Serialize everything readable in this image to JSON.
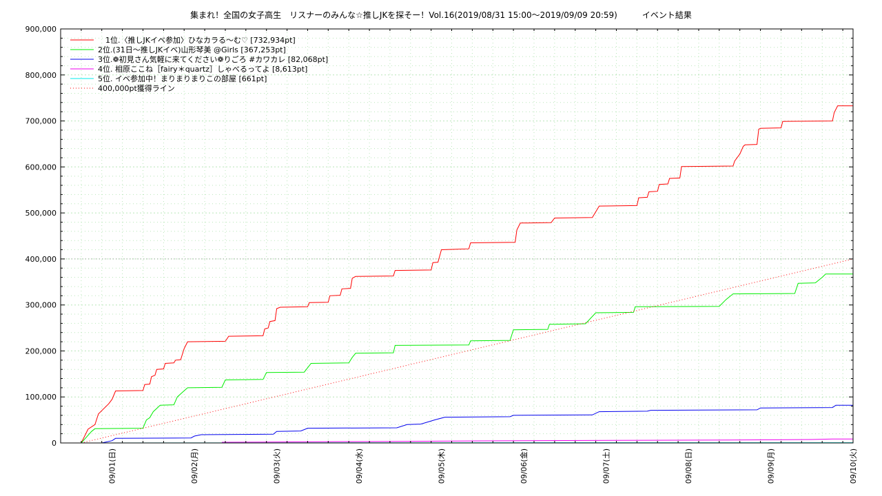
{
  "chart_data": {
    "type": "line",
    "title": "集まれ！全国の女子高生　リスナーのみんな☆推しJKを探そー！Vol.16(2019/08/31 15:00～2019/09/09 20:59)　　　イベント結果",
    "xlabel": "",
    "ylabel": "",
    "x_tick_labels": [
      "09/01(日)",
      "09/02(月)",
      "09/03(火)",
      "09/04(水)",
      "09/05(木)",
      "09/06(金)",
      "09/07(土)",
      "09/08(日)",
      "09/09(月)",
      "09/10(火)"
    ],
    "x_tick_dates": [
      "2019-09-01",
      "2019-09-02",
      "2019-09-03",
      "2019-09-04",
      "2019-09-05",
      "2019-09-06",
      "2019-09-07",
      "2019-09-08",
      "2019-09-09",
      "2019-09-10"
    ],
    "x_range": [
      "2019-08-31 09:00",
      "2019-09-10 00:00"
    ],
    "ylim": [
      0,
      900000
    ],
    "y_ticks": [
      0,
      100000,
      200000,
      300000,
      400000,
      500000,
      600000,
      700000,
      800000,
      900000
    ],
    "y_tick_labels": [
      "0",
      "100,000",
      "200,000",
      "300,000",
      "400,000",
      "500,000",
      "600,000",
      "700,000",
      "800,000",
      "900,000"
    ],
    "grid": true,
    "legend_position": "top-left",
    "reference_line": {
      "value": 400000,
      "style": "horizontal dotted",
      "color": "#999999"
    },
    "series": [
      {
        "name": "　1位.〈推しJKイベ参加〉ひなカラる～む♡ [732,934pt]",
        "color": "#ff0000",
        "style": "solid",
        "points": [
          [
            "2019-08-31 15:00",
            0
          ],
          [
            "2019-08-31 17:00",
            30000
          ],
          [
            "2019-08-31 19:00",
            40000
          ],
          [
            "2019-08-31 20:00",
            63000
          ],
          [
            "2019-08-31 23:00",
            85000
          ],
          [
            "2019-09-01 00:00",
            95000
          ],
          [
            "2019-09-01 01:00",
            113000
          ],
          [
            "2019-09-01 09:00",
            114000
          ],
          [
            "2019-09-01 09:30",
            127000
          ],
          [
            "2019-09-01 11:00",
            128000
          ],
          [
            "2019-09-01 11:30",
            144000
          ],
          [
            "2019-09-01 12:30",
            147000
          ],
          [
            "2019-09-01 13:00",
            160000
          ],
          [
            "2019-09-01 15:00",
            161000
          ],
          [
            "2019-09-01 15:30",
            173000
          ],
          [
            "2019-09-01 18:00",
            174000
          ],
          [
            "2019-09-01 18:30",
            180000
          ],
          [
            "2019-09-01 20:00",
            181000
          ],
          [
            "2019-09-01 21:00",
            205000
          ],
          [
            "2019-09-01 22:00",
            220000
          ],
          [
            "2019-09-02 09:00",
            221000
          ],
          [
            "2019-09-02 10:00",
            232000
          ],
          [
            "2019-09-02 20:00",
            233000
          ],
          [
            "2019-09-02 20:30",
            248000
          ],
          [
            "2019-09-02 21:30",
            250000
          ],
          [
            "2019-09-02 22:00",
            264000
          ],
          [
            "2019-09-02 23:30",
            266000
          ],
          [
            "2019-09-03 00:00",
            292000
          ],
          [
            "2019-09-03 01:00",
            295000
          ],
          [
            "2019-09-03 09:00",
            296000
          ],
          [
            "2019-09-03 09:30",
            305000
          ],
          [
            "2019-09-03 15:00",
            306000
          ],
          [
            "2019-09-03 15:30",
            320000
          ],
          [
            "2019-09-03 18:30",
            321000
          ],
          [
            "2019-09-03 19:00",
            335000
          ],
          [
            "2019-09-03 21:30",
            336000
          ],
          [
            "2019-09-03 22:00",
            358000
          ],
          [
            "2019-09-03 23:00",
            362000
          ],
          [
            "2019-09-04 10:00",
            363000
          ],
          [
            "2019-09-04 10:30",
            375000
          ],
          [
            "2019-09-04 21:00",
            376000
          ],
          [
            "2019-09-04 21:30",
            392000
          ],
          [
            "2019-09-04 23:00",
            393000
          ],
          [
            "2019-09-05 00:00",
            420000
          ],
          [
            "2019-09-05 04:00",
            421000
          ],
          [
            "2019-09-05 08:00",
            422000
          ],
          [
            "2019-09-05 08:30",
            435000
          ],
          [
            "2019-09-05 21:30",
            436000
          ],
          [
            "2019-09-05 22:00",
            463000
          ],
          [
            "2019-09-05 23:00",
            478000
          ],
          [
            "2019-09-06 08:00",
            479000
          ],
          [
            "2019-09-06 09:00",
            489000
          ],
          [
            "2019-09-06 20:00",
            490000
          ],
          [
            "2019-09-06 22:00",
            515000
          ],
          [
            "2019-09-07 09:00",
            516000
          ],
          [
            "2019-09-07 09:30",
            533000
          ],
          [
            "2019-09-07 12:00",
            534000
          ],
          [
            "2019-09-07 12:30",
            546000
          ],
          [
            "2019-09-07 15:00",
            547000
          ],
          [
            "2019-09-07 15:30",
            562000
          ],
          [
            "2019-09-07 18:00",
            563000
          ],
          [
            "2019-09-07 18:30",
            575000
          ],
          [
            "2019-09-07 21:30",
            576000
          ],
          [
            "2019-09-07 22:00",
            601000
          ],
          [
            "2019-09-08 13:00",
            602000
          ],
          [
            "2019-09-08 13:30",
            613000
          ],
          [
            "2019-09-08 15:00",
            628000
          ],
          [
            "2019-09-08 16:00",
            645000
          ],
          [
            "2019-09-08 16:30",
            648000
          ],
          [
            "2019-09-08 20:00",
            649000
          ],
          [
            "2019-09-08 20:30",
            682000
          ],
          [
            "2019-09-08 21:00",
            684000
          ],
          [
            "2019-09-09 03:00",
            685000
          ],
          [
            "2019-09-09 03:30",
            699000
          ],
          [
            "2019-09-09 18:00",
            700000
          ],
          [
            "2019-09-09 18:30",
            718000
          ],
          [
            "2019-09-09 19:30",
            732934
          ],
          [
            "2019-09-10 00:00",
            732934
          ]
        ]
      },
      {
        "name": "2位.(31日～推しJKイベ)山形琴美 @Girls [367,253pt]",
        "color": "#00ee00",
        "style": "solid",
        "points": [
          [
            "2019-08-31 15:00",
            0
          ],
          [
            "2019-08-31 18:00",
            25000
          ],
          [
            "2019-08-31 19:00",
            31000
          ],
          [
            "2019-09-01 09:00",
            32000
          ],
          [
            "2019-09-01 10:00",
            50000
          ],
          [
            "2019-09-01 11:00",
            55000
          ],
          [
            "2019-09-01 12:00",
            68000
          ],
          [
            "2019-09-01 14:00",
            82000
          ],
          [
            "2019-09-01 18:00",
            83000
          ],
          [
            "2019-09-01 19:00",
            100000
          ],
          [
            "2019-09-01 20:30",
            110000
          ],
          [
            "2019-09-01 22:00",
            120000
          ],
          [
            "2019-09-02 08:00",
            121000
          ],
          [
            "2019-09-02 09:00",
            137000
          ],
          [
            "2019-09-02 20:00",
            138000
          ],
          [
            "2019-09-02 21:00",
            153000
          ],
          [
            "2019-09-03 08:00",
            154000
          ],
          [
            "2019-09-03 10:00",
            173000
          ],
          [
            "2019-09-03 21:00",
            174000
          ],
          [
            "2019-09-03 22:00",
            186000
          ],
          [
            "2019-09-03 23:00",
            195000
          ],
          [
            "2019-09-04 10:00",
            196000
          ],
          [
            "2019-09-04 10:30",
            212000
          ],
          [
            "2019-09-05 08:00",
            213000
          ],
          [
            "2019-09-05 08:30",
            222000
          ],
          [
            "2019-09-05 20:00",
            223000
          ],
          [
            "2019-09-05 21:00",
            246000
          ],
          [
            "2019-09-06 07:00",
            247000
          ],
          [
            "2019-09-06 07:30",
            258000
          ],
          [
            "2019-09-06 18:00",
            259000
          ],
          [
            "2019-09-06 20:00",
            275000
          ],
          [
            "2019-09-06 21:00",
            283000
          ],
          [
            "2019-09-07 08:00",
            284000
          ],
          [
            "2019-09-07 08:30",
            296000
          ],
          [
            "2019-09-08 09:00",
            297000
          ],
          [
            "2019-09-08 11:00",
            312000
          ],
          [
            "2019-09-08 13:00",
            324000
          ],
          [
            "2019-09-09 07:00",
            325000
          ],
          [
            "2019-09-09 08:00",
            347000
          ],
          [
            "2019-09-09 13:00",
            348000
          ],
          [
            "2019-09-09 15:00",
            360000
          ],
          [
            "2019-09-09 16:00",
            367253
          ],
          [
            "2019-09-10 00:00",
            367253
          ]
        ]
      },
      {
        "name": "3位.❁初見さん気軽に来てください❁りごろ #カワカレ [82,068pt]",
        "color": "#0000ee",
        "style": "solid",
        "points": [
          [
            "2019-08-31 21:00",
            0
          ],
          [
            "2019-09-01 00:00",
            5000
          ],
          [
            "2019-09-01 01:00",
            10000
          ],
          [
            "2019-09-01 23:00",
            11000
          ],
          [
            "2019-09-02 00:00",
            15000
          ],
          [
            "2019-09-02 02:00",
            18000
          ],
          [
            "2019-09-02 23:00",
            19000
          ],
          [
            "2019-09-03 00:00",
            25000
          ],
          [
            "2019-09-03 07:00",
            26000
          ],
          [
            "2019-09-03 09:00",
            32000
          ],
          [
            "2019-09-04 11:00",
            33000
          ],
          [
            "2019-09-04 14:00",
            40000
          ],
          [
            "2019-09-04 18:00",
            41000
          ],
          [
            "2019-09-04 22:00",
            50000
          ],
          [
            "2019-09-05 01:00",
            56000
          ],
          [
            "2019-09-05 20:00",
            57000
          ],
          [
            "2019-09-05 21:00",
            60000
          ],
          [
            "2019-09-06 20:00",
            61000
          ],
          [
            "2019-09-06 22:00",
            68000
          ],
          [
            "2019-09-07 12:00",
            69000
          ],
          [
            "2019-09-07 13:00",
            71000
          ],
          [
            "2019-09-08 20:00",
            72000
          ],
          [
            "2019-09-08 21:00",
            76000
          ],
          [
            "2019-09-09 18:00",
            77000
          ],
          [
            "2019-09-09 19:00",
            82068
          ],
          [
            "2019-09-10 00:00",
            82068
          ]
        ]
      },
      {
        "name": "4位. 相原ここね［fairy＊quartz］しゃべるってよ [8,613pt]",
        "color": "#ee00ee",
        "style": "solid",
        "points": [
          [
            "2019-09-02 08:00",
            1500
          ],
          [
            "2019-09-03 12:00",
            2500
          ],
          [
            "2019-09-04 12:00",
            3500
          ],
          [
            "2019-09-05 12:00",
            4500
          ],
          [
            "2019-09-06 12:00",
            5200
          ],
          [
            "2019-09-07 12:00",
            5800
          ],
          [
            "2019-09-08 12:00",
            6500
          ],
          [
            "2019-09-09 12:00",
            7500
          ],
          [
            "2019-09-09 18:00",
            8613
          ],
          [
            "2019-09-10 00:00",
            8613
          ]
        ]
      },
      {
        "name": "5位. イベ参加中！まりまりまりこの部屋 [661pt]",
        "color": "#00eeee",
        "style": "solid",
        "points": [
          [
            "2019-08-31 15:00",
            0
          ],
          [
            "2019-09-02 00:00",
            200
          ],
          [
            "2019-09-05 00:00",
            400
          ],
          [
            "2019-09-08 00:00",
            600
          ],
          [
            "2019-09-10 00:00",
            661
          ]
        ]
      },
      {
        "name": "400,000pt獲得ライン",
        "color": "#ff0000",
        "style": "dotted",
        "points": [
          [
            "2019-08-31 15:00",
            0
          ],
          [
            "2019-09-10 00:00",
            400000
          ]
        ]
      }
    ]
  }
}
